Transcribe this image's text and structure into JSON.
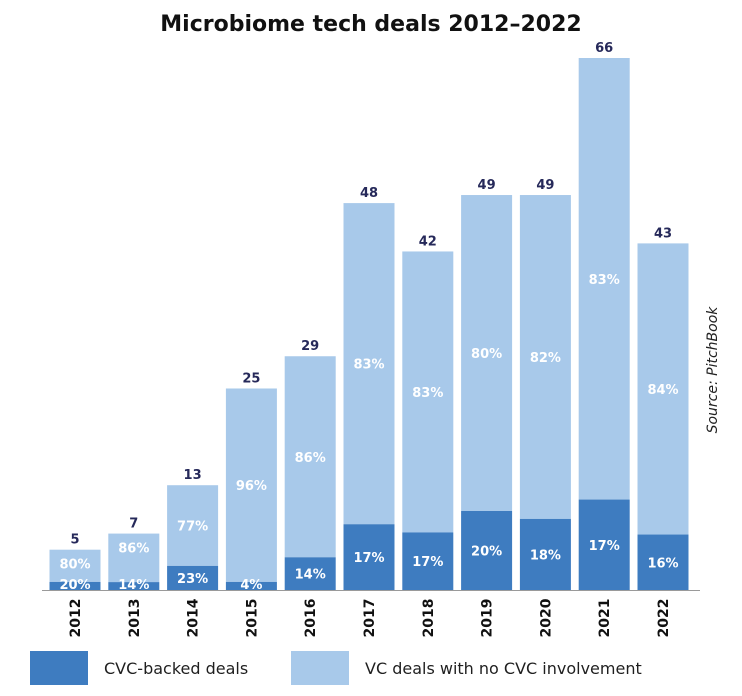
{
  "chart_data": {
    "type": "bar",
    "stacked": true,
    "title": "Microbiome tech deals 2012–2022",
    "categories": [
      "2012",
      "2013",
      "2014",
      "2015",
      "2016",
      "2017",
      "2018",
      "2019",
      "2020",
      "2021",
      "2022"
    ],
    "totals": [
      5,
      7,
      13,
      25,
      29,
      48,
      42,
      49,
      49,
      66,
      43
    ],
    "series": [
      {
        "name": "CVC-backed deals",
        "share_labels": [
          "20%",
          "14%",
          "23%",
          "4%",
          "14%",
          "17%",
          "17%",
          "20%",
          "18%",
          "17%",
          "16%"
        ],
        "shares": [
          20,
          14,
          23,
          4,
          14,
          17,
          17,
          20,
          18,
          17,
          16
        ]
      },
      {
        "name": "VC deals with no CVC involvement",
        "share_labels": [
          "80%",
          "86%",
          "77%",
          "96%",
          "86%",
          "83%",
          "83%",
          "80%",
          "82%",
          "83%",
          "84%"
        ],
        "shares": [
          80,
          86,
          77,
          96,
          86,
          83,
          83,
          80,
          82,
          83,
          84
        ]
      }
    ],
    "ylim": [
      0,
      66
    ],
    "grid": false,
    "legend_position": "bottom",
    "colors": {
      "cvc": "#3e7cc0",
      "vc": "#a8c9ea",
      "total_label": "#26295a"
    }
  },
  "legend": {
    "cvc_label": "CVC-backed deals",
    "vc_label": "VC deals with no CVC involvement"
  },
  "source": "Source: PitchBook"
}
